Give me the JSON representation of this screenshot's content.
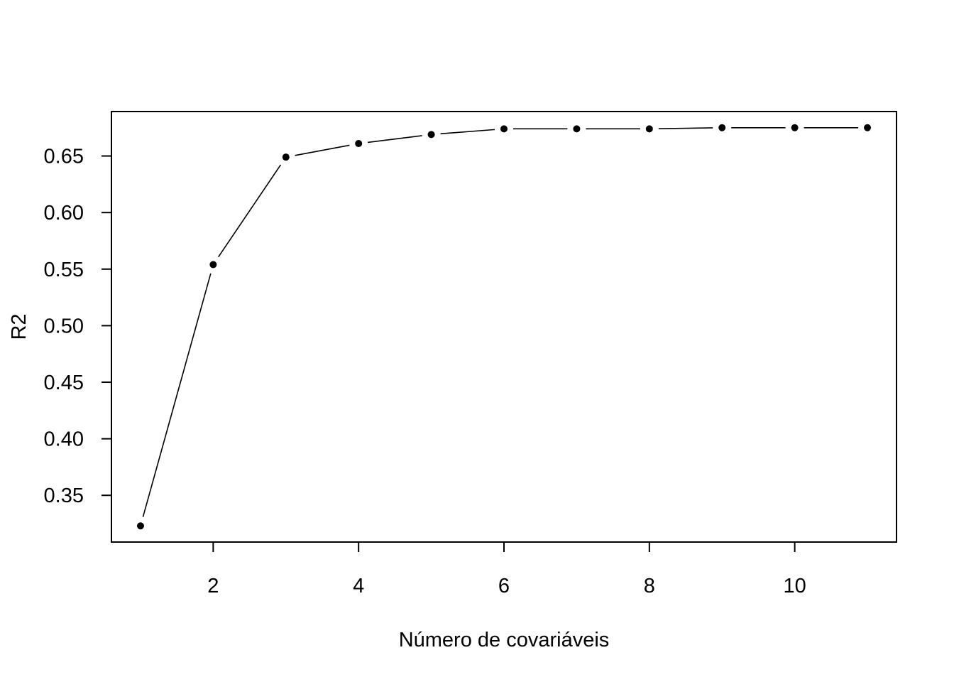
{
  "chart_data": {
    "type": "line",
    "title": "",
    "xlabel": "Número de covariáveis",
    "ylabel": "R2",
    "x": [
      1,
      2,
      3,
      4,
      5,
      6,
      7,
      8,
      9,
      10,
      11
    ],
    "values": [
      0.323,
      0.554,
      0.649,
      0.661,
      0.669,
      0.674,
      0.674,
      0.674,
      0.675,
      0.675,
      0.675
    ],
    "x_ticks": [
      2,
      4,
      6,
      8,
      10
    ],
    "x_tick_labels": [
      "2",
      "4",
      "6",
      "8",
      "10"
    ],
    "y_ticks": [
      0.35,
      0.4,
      0.45,
      0.5,
      0.55,
      0.6,
      0.65
    ],
    "y_tick_labels": [
      "0.35",
      "0.40",
      "0.45",
      "0.50",
      "0.55",
      "0.60",
      "0.65"
    ],
    "xlim": [
      0.6,
      11.4
    ],
    "ylim": [
      0.3087,
      0.6893
    ],
    "grid": false,
    "legend": "none",
    "style": "overplotted points joined by line segments",
    "colors": {
      "line": "#000000",
      "points": "#000000",
      "background": "#ffffff"
    }
  }
}
